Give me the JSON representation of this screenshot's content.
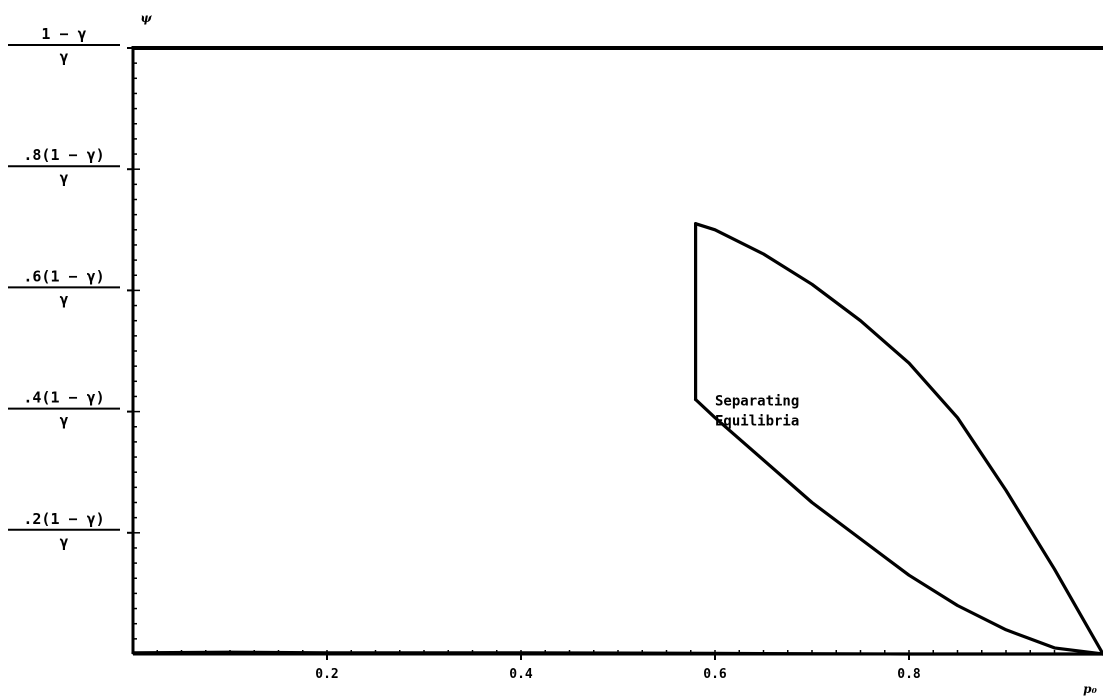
{
  "chart_data": {
    "type": "line",
    "title": "",
    "xlabel": "p₀",
    "ylabel": "ψ",
    "xlim": [
      0,
      1
    ],
    "ylim": [
      0,
      1
    ],
    "x_ticks": [
      {
        "value": 0.2,
        "label": "0.2"
      },
      {
        "value": 0.4,
        "label": "0.4"
      },
      {
        "value": 0.6,
        "label": "0.6"
      },
      {
        "value": 0.8,
        "label": "0.8"
      }
    ],
    "y_ticks": [
      {
        "value": 0.2,
        "numerator": ".2(1 − γ)",
        "denominator": "γ"
      },
      {
        "value": 0.4,
        "numerator": ".4(1 − γ)",
        "denominator": "γ"
      },
      {
        "value": 0.6,
        "numerator": ".6(1 − γ)",
        "denominator": "γ"
      },
      {
        "value": 0.8,
        "numerator": ".8(1 − γ)",
        "denominator": "γ"
      },
      {
        "value": 1.0,
        "numerator": "1 − γ",
        "denominator": "γ"
      }
    ],
    "annotation": {
      "lines": [
        "Separating",
        "Equilibria"
      ],
      "x": 0.6,
      "y": 0.41
    },
    "grid": false,
    "series": [
      {
        "x": [
          0.58,
          0.6,
          0.65,
          0.7,
          0.75,
          0.8,
          0.85,
          0.9,
          0.95,
          1.0
        ],
        "y": [
          0.71,
          0.7,
          0.66,
          0.61,
          0.55,
          0.48,
          0.39,
          0.27,
          0.14,
          0.0
        ]
      },
      {
        "x": [
          0.58,
          0.6,
          0.65,
          0.7,
          0.75,
          0.8,
          0.85,
          0.9,
          0.95,
          1.0
        ],
        "y": [
          0.42,
          0.39,
          0.32,
          0.25,
          0.19,
          0.13,
          0.08,
          0.04,
          0.01,
          0.0
        ]
      },
      {
        "x": [
          0.58,
          0.58
        ],
        "y": [
          0.42,
          0.71
        ]
      },
      {
        "x": [
          0.0,
          0.1,
          0.2,
          0.4,
          0.6,
          0.8,
          1.0
        ],
        "y": [
          0.002,
          0.003,
          0.002,
          0.002,
          0.001,
          0.0,
          0.0
        ]
      }
    ]
  }
}
